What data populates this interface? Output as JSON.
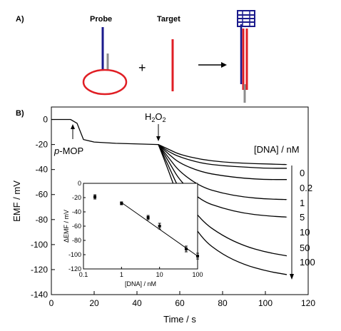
{
  "panel_a": {
    "label": "A)",
    "probe_label": "Probe",
    "target_label": "Target",
    "plus": "+",
    "colors": {
      "blue": "#1a1a8c",
      "red": "#e01e24",
      "gray": "#8c8c8c",
      "arrow": "#000000"
    }
  },
  "panel_b": {
    "label": "B)",
    "xlabel": "Time / s",
    "ylabel": "EMF / mV",
    "annotation_mop_prefix": "p",
    "annotation_mop_rest": "-MOP",
    "annotation_h2o2": {
      "h": "H",
      "s1": "2",
      "o": "O",
      "s2": "2"
    },
    "legend_title": "[DNA] / nM",
    "concentration_labels": [
      "0",
      "0.2",
      "1",
      "5",
      "10",
      "50",
      "100"
    ],
    "inset": {
      "xlabel": "[DNA] / nM",
      "ylabel": "ΔEMF / mV"
    }
  },
  "chart_data": [
    {
      "type": "line",
      "title": "",
      "xlabel": "Time / s",
      "ylabel": "EMF / mV",
      "xlim": [
        0,
        120
      ],
      "ylim": [
        -140,
        10
      ],
      "xticks": [
        0,
        20,
        40,
        60,
        80,
        100,
        120
      ],
      "yticks": [
        0,
        -20,
        -40,
        -60,
        -80,
        -100,
        -120,
        -140
      ],
      "baseline": [
        [
          0,
          0
        ],
        [
          9,
          0
        ],
        [
          12,
          -3
        ],
        [
          15,
          -16
        ],
        [
          20,
          -18
        ],
        [
          30,
          -19
        ],
        [
          40,
          -19.5
        ],
        [
          50,
          -20
        ]
      ],
      "series": [
        {
          "name": "0",
          "x": [
            50,
            55,
            60,
            70,
            80,
            90,
            100,
            110
          ],
          "y": [
            -20,
            -24,
            -28,
            -32,
            -34,
            -35,
            -35.5,
            -36
          ]
        },
        {
          "name": "0.2",
          "x": [
            50,
            55,
            60,
            70,
            80,
            90,
            100,
            110
          ],
          "y": [
            -20,
            -26,
            -30,
            -35,
            -37,
            -38,
            -39,
            -39
          ]
        },
        {
          "name": "1",
          "x": [
            50,
            55,
            60,
            70,
            80,
            90,
            100,
            110
          ],
          "y": [
            -20,
            -28,
            -35,
            -42,
            -45,
            -47,
            -48,
            -48
          ]
        },
        {
          "name": "5",
          "x": [
            50,
            55,
            60,
            70,
            80,
            90,
            100,
            110
          ],
          "y": [
            -20,
            -31,
            -42,
            -54,
            -59,
            -62,
            -63.5,
            -64
          ]
        },
        {
          "name": "10",
          "x": [
            50,
            55,
            60,
            70,
            80,
            90,
            100,
            110
          ],
          "y": [
            -20,
            -34,
            -49,
            -65,
            -71,
            -75,
            -77,
            -78
          ]
        },
        {
          "name": "50",
          "x": [
            50,
            55,
            60,
            70,
            80,
            90,
            100,
            110
          ],
          "y": [
            -20,
            -38,
            -57,
            -81,
            -93,
            -101,
            -106,
            -109
          ]
        },
        {
          "name": "100",
          "x": [
            50,
            55,
            60,
            70,
            80,
            90,
            100,
            110
          ],
          "y": [
            -20,
            -42,
            -66,
            -95,
            -108,
            -116,
            -121,
            -124
          ]
        }
      ]
    },
    {
      "type": "scatter",
      "title": "",
      "xlabel": "[DNA] / nM",
      "ylabel": "ΔEMF / mV",
      "xscale": "log",
      "xlim": [
        0.1,
        100
      ],
      "ylim": [
        -120,
        0
      ],
      "xticks": [
        0.1,
        1,
        10,
        100
      ],
      "yticks": [
        0,
        -20,
        -40,
        -60,
        -80,
        -100,
        -120
      ],
      "x": [
        0.2,
        1,
        5,
        10,
        50,
        100
      ],
      "y": [
        -19,
        -28,
        -48,
        -60,
        -92,
        -102
      ],
      "error": [
        3,
        2,
        3,
        4,
        4,
        4
      ],
      "fit_line": {
        "x": [
          1,
          100
        ],
        "y": [
          -27,
          -102
        ]
      }
    }
  ]
}
